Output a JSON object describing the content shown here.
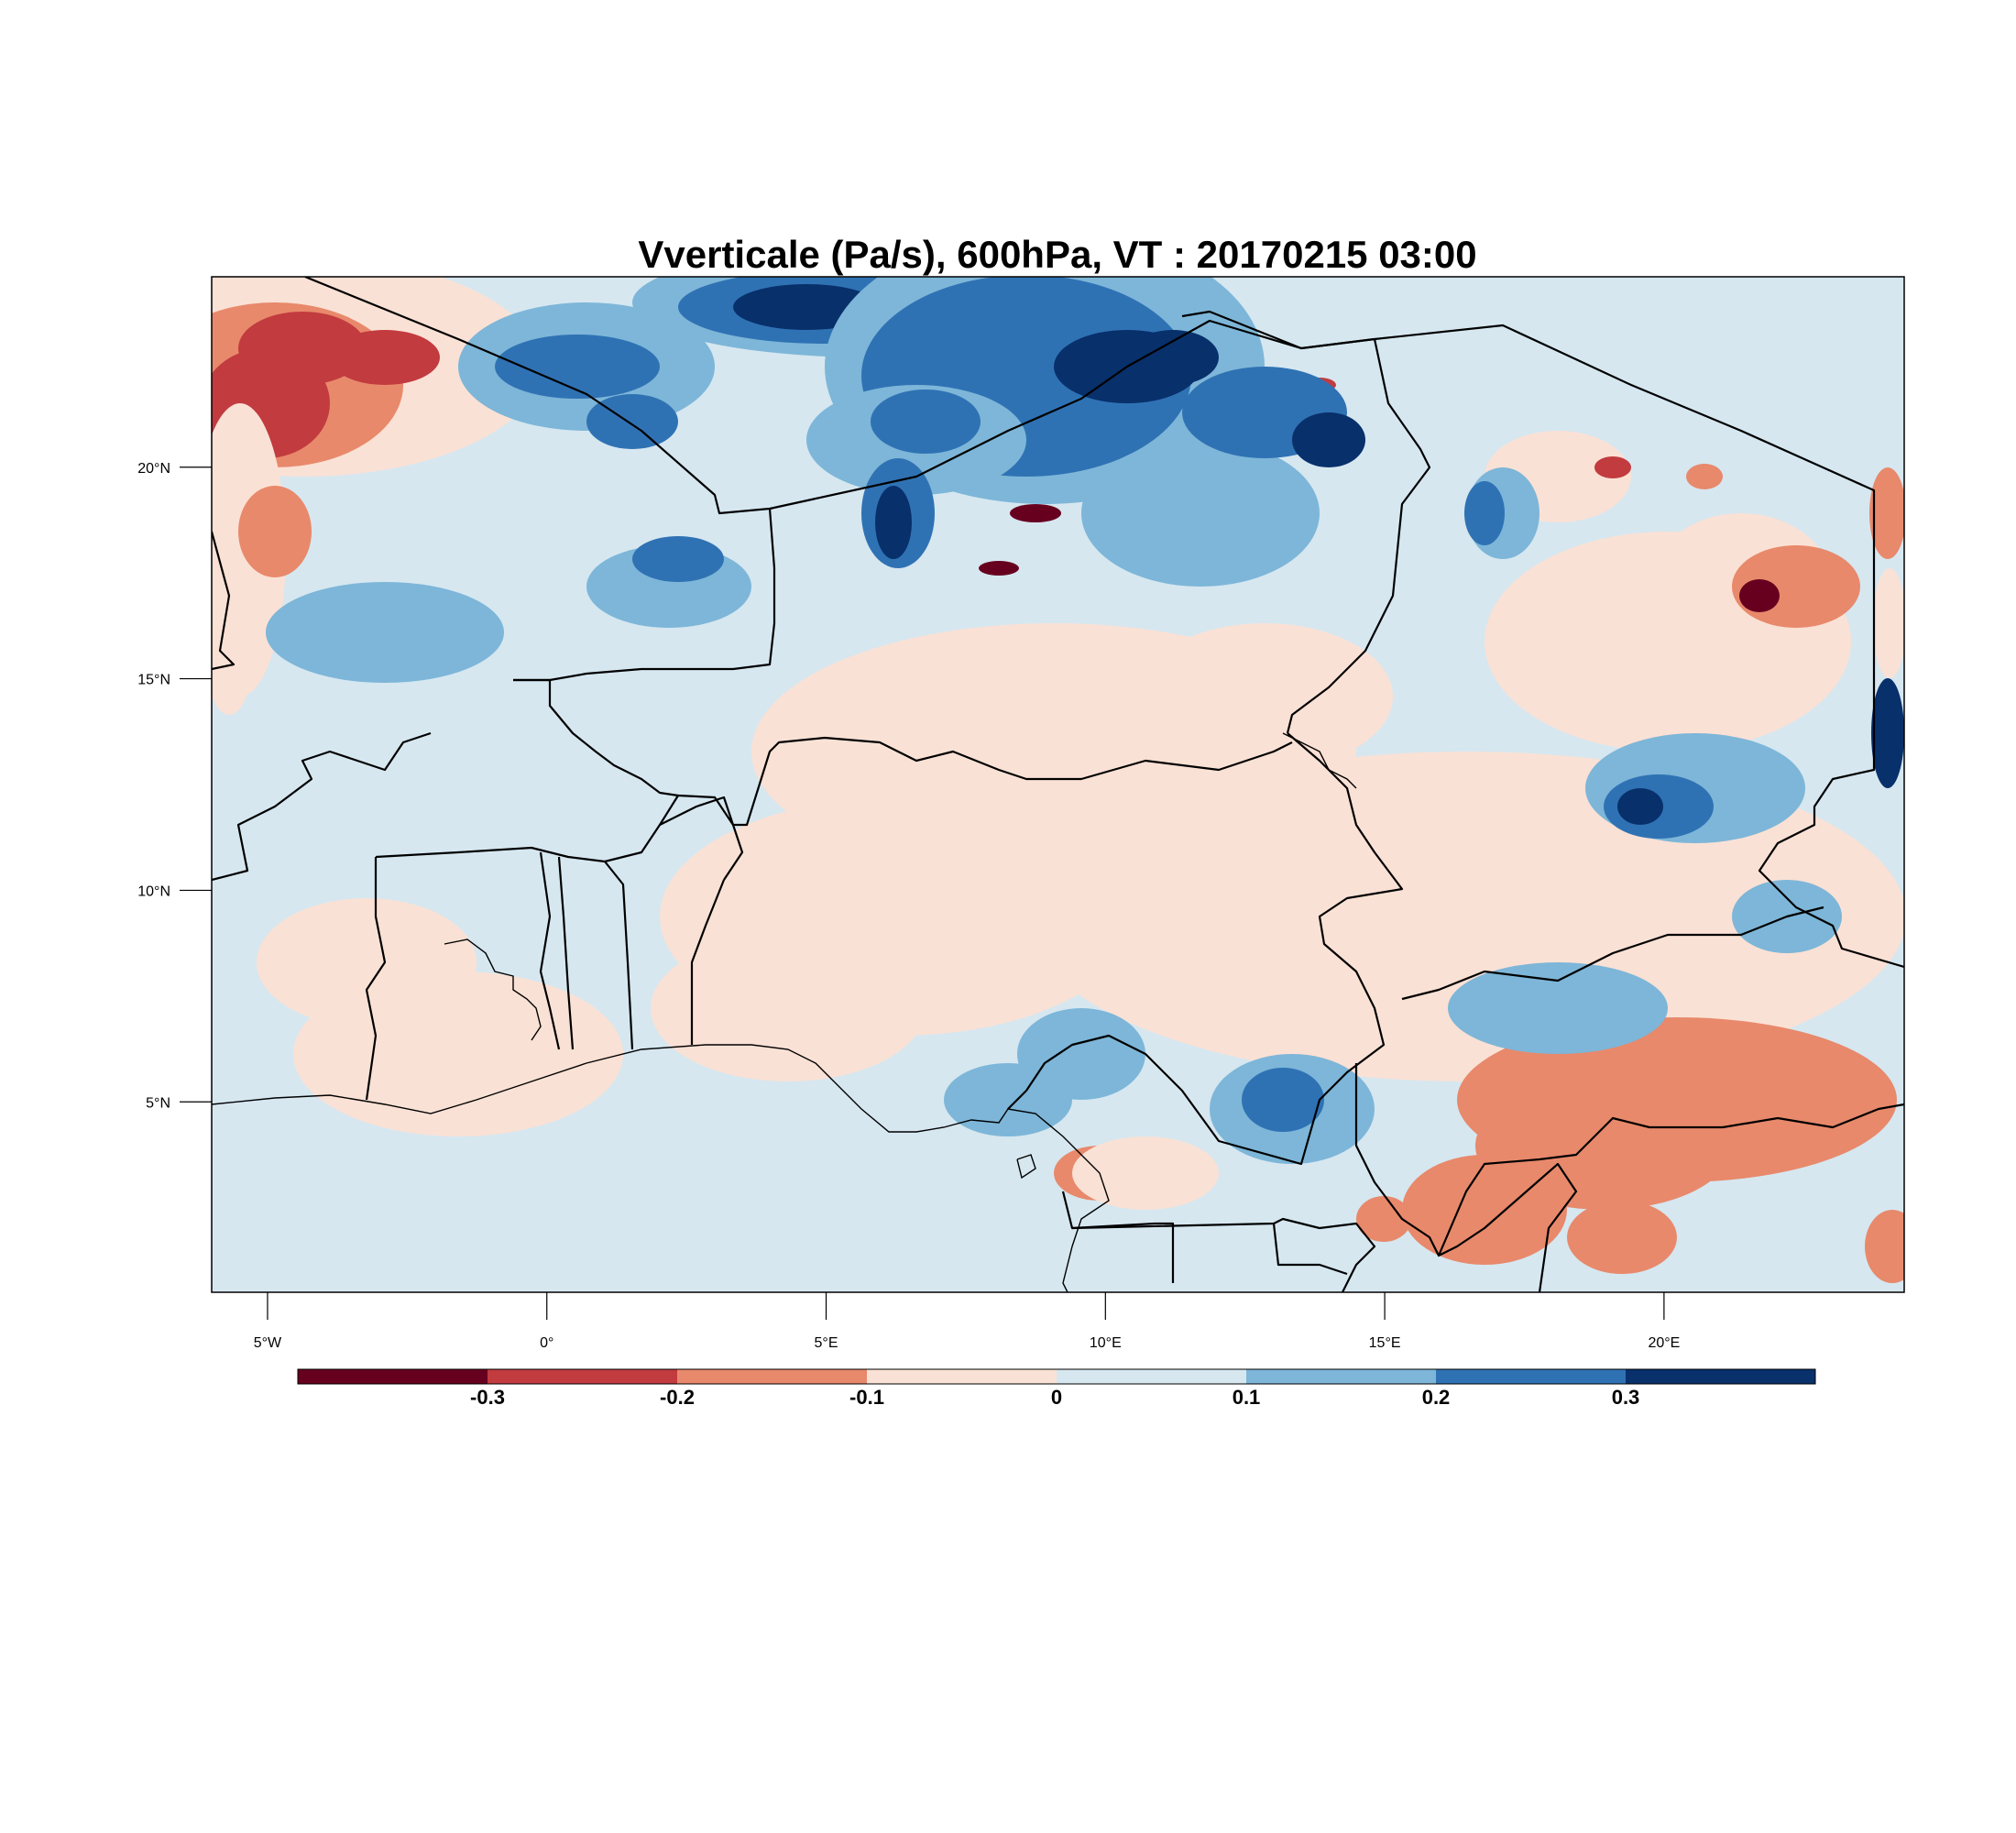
{
  "title": "Vverticale (Pa/s), 600hPa, VT : 20170215  03:00",
  "map": {
    "lon_range": [
      -6,
      24.3
    ],
    "lat_range": [
      0.5,
      24.5
    ],
    "x_ticks": [
      {
        "value": -5,
        "label": "5°W"
      },
      {
        "value": 0,
        "label": "0°"
      },
      {
        "value": 5,
        "label": "5°E"
      },
      {
        "value": 10,
        "label": "10°E"
      },
      {
        "value": 15,
        "label": "15°E"
      },
      {
        "value": 20,
        "label": "20°E"
      }
    ],
    "y_ticks": [
      {
        "value": 20,
        "label": "20°N"
      },
      {
        "value": 15,
        "label": "15°N"
      },
      {
        "value": 10,
        "label": "10°N"
      },
      {
        "value": 5,
        "label": "5°N"
      }
    ]
  },
  "colorbar": {
    "colors": [
      "#67001f",
      "#c23b3f",
      "#e8896b",
      "#fae1d5",
      "#d6e7f0",
      "#7db6d8",
      "#2f72b4",
      "#08306b"
    ],
    "labels": [
      {
        "index": 1,
        "label": "-0.3"
      },
      {
        "index": 2,
        "label": "-0.2"
      },
      {
        "index": 3,
        "label": "-0.1"
      },
      {
        "index": 4,
        "label": "0"
      },
      {
        "index": 5,
        "label": "0.1"
      },
      {
        "index": 6,
        "label": "0.2"
      },
      {
        "index": 7,
        "label": "0.3"
      }
    ]
  }
}
